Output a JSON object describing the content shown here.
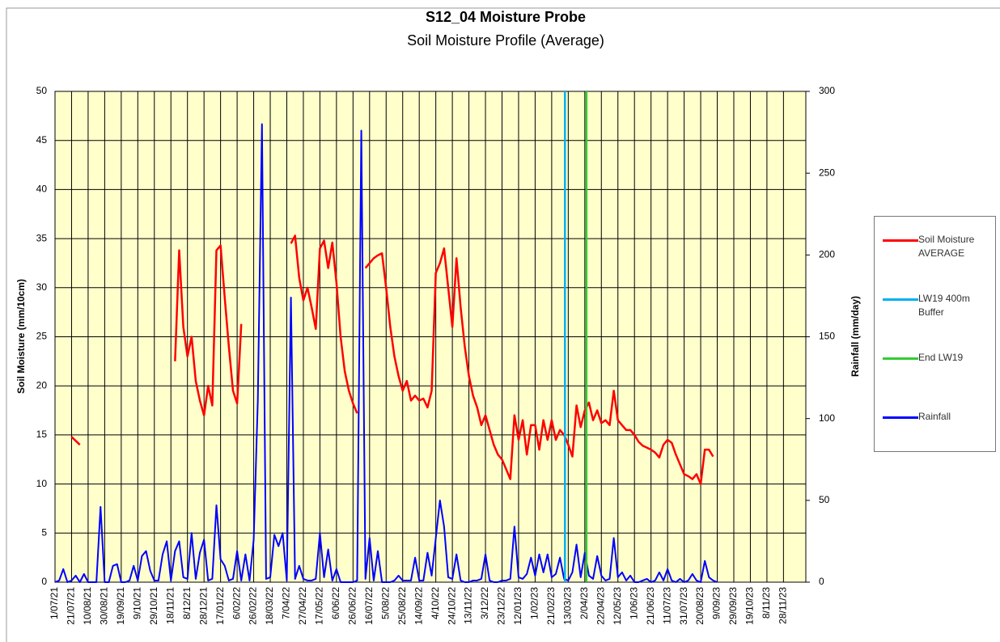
{
  "chart_data": {
    "type": "line",
    "title": "S12_04 Moisture Probe",
    "subtitle": "Soil Moisture Profile (Average)",
    "y_label": "Soil Moisture (mm/10cm)",
    "y2_label": "Rainfall (mm/day)",
    "grid": true,
    "legend": "right",
    "xlim": [
      "2021-07-01",
      "2023-12-25"
    ],
    "ylim": [
      0,
      50
    ],
    "yticks": [
      0,
      5,
      10,
      15,
      20,
      25,
      30,
      35,
      40,
      45,
      50
    ],
    "y2lim": [
      0,
      300
    ],
    "y2ticks": [
      0,
      50,
      100,
      150,
      200,
      250,
      300
    ],
    "xticks": [
      {
        "value": "2021-07-01",
        "label": "1/07/21"
      },
      {
        "value": "2021-07-21",
        "label": "21/07/21"
      },
      {
        "value": "2021-08-10",
        "label": "10/08/21"
      },
      {
        "value": "2021-08-30",
        "label": "30/08/21"
      },
      {
        "value": "2021-09-19",
        "label": "19/09/21"
      },
      {
        "value": "2021-10-09",
        "label": "9/10/21"
      },
      {
        "value": "2021-10-29",
        "label": "29/10/21"
      },
      {
        "value": "2021-11-18",
        "label": "18/11/21"
      },
      {
        "value": "2021-12-08",
        "label": "8/12/21"
      },
      {
        "value": "2021-12-28",
        "label": "28/12/21"
      },
      {
        "value": "2022-01-17",
        "label": "17/01/22"
      },
      {
        "value": "2022-02-06",
        "label": "6/02/22"
      },
      {
        "value": "2022-02-26",
        "label": "26/02/22"
      },
      {
        "value": "2022-03-18",
        "label": "18/03/22"
      },
      {
        "value": "2022-04-07",
        "label": "7/04/22"
      },
      {
        "value": "2022-04-27",
        "label": "27/04/22"
      },
      {
        "value": "2022-05-17",
        "label": "17/05/22"
      },
      {
        "value": "2022-06-06",
        "label": "6/06/22"
      },
      {
        "value": "2022-06-26",
        "label": "26/06/22"
      },
      {
        "value": "2022-07-16",
        "label": "16/07/22"
      },
      {
        "value": "2022-08-05",
        "label": "5/08/22"
      },
      {
        "value": "2022-08-25",
        "label": "25/08/22"
      },
      {
        "value": "2022-09-14",
        "label": "14/09/22"
      },
      {
        "value": "2022-10-04",
        "label": "4/10/22"
      },
      {
        "value": "2022-10-24",
        "label": "24/10/22"
      },
      {
        "value": "2022-11-13",
        "label": "13/11/22"
      },
      {
        "value": "2022-12-03",
        "label": "3/12/22"
      },
      {
        "value": "2022-12-23",
        "label": "23/12/22"
      },
      {
        "value": "2023-01-12",
        "label": "12/01/23"
      },
      {
        "value": "2023-02-01",
        "label": "1/02/23"
      },
      {
        "value": "2023-02-21",
        "label": "21/02/23"
      },
      {
        "value": "2023-03-13",
        "label": "13/03/23"
      },
      {
        "value": "2023-04-02",
        "label": "2/04/23"
      },
      {
        "value": "2023-04-22",
        "label": "22/04/23"
      },
      {
        "value": "2023-05-12",
        "label": "12/05/23"
      },
      {
        "value": "2023-06-01",
        "label": "1/06/23"
      },
      {
        "value": "2023-06-21",
        "label": "21/06/23"
      },
      {
        "value": "2023-07-11",
        "label": "11/07/23"
      },
      {
        "value": "2023-07-31",
        "label": "31/07/23"
      },
      {
        "value": "2023-08-20",
        "label": "20/08/23"
      },
      {
        "value": "2023-09-09",
        "label": "9/09/23"
      },
      {
        "value": "2023-09-29",
        "label": "29/09/23"
      },
      {
        "value": "2023-10-19",
        "label": "19/10/23"
      },
      {
        "value": "2023-11-08",
        "label": "8/11/23"
      },
      {
        "value": "2023-11-28",
        "label": "28/11/23"
      }
    ],
    "x": [
      "2021-07-01",
      "2021-07-06",
      "2021-07-11",
      "2021-07-16",
      "2021-07-21",
      "2021-07-26",
      "2021-07-31",
      "2021-08-05",
      "2021-08-10",
      "2021-08-15",
      "2021-08-20",
      "2021-08-25",
      "2021-08-30",
      "2021-09-04",
      "2021-09-09",
      "2021-09-14",
      "2021-09-19",
      "2021-09-24",
      "2021-09-29",
      "2021-10-04",
      "2021-10-09",
      "2021-10-14",
      "2021-10-19",
      "2021-10-24",
      "2021-10-29",
      "2021-11-03",
      "2021-11-08",
      "2021-11-13",
      "2021-11-18",
      "2021-11-23",
      "2021-11-28",
      "2021-12-03",
      "2021-12-08",
      "2021-12-13",
      "2021-12-18",
      "2021-12-23",
      "2021-12-28",
      "2022-01-02",
      "2022-01-07",
      "2022-01-12",
      "2022-01-17",
      "2022-01-22",
      "2022-01-27",
      "2022-02-01",
      "2022-02-06",
      "2022-02-11",
      "2022-02-16",
      "2022-02-21",
      "2022-02-26",
      "2022-03-03",
      "2022-03-08",
      "2022-03-13",
      "2022-03-18",
      "2022-03-23",
      "2022-03-28",
      "2022-04-02",
      "2022-04-07",
      "2022-04-12",
      "2022-04-17",
      "2022-04-22",
      "2022-04-27",
      "2022-05-02",
      "2022-05-07",
      "2022-05-12",
      "2022-05-17",
      "2022-05-22",
      "2022-05-27",
      "2022-06-01",
      "2022-06-06",
      "2022-06-11",
      "2022-06-16",
      "2022-06-21",
      "2022-06-26",
      "2022-07-01",
      "2022-07-06",
      "2022-07-11",
      "2022-07-16",
      "2022-07-21",
      "2022-07-26",
      "2022-07-31",
      "2022-08-05",
      "2022-08-10",
      "2022-08-15",
      "2022-08-20",
      "2022-08-25",
      "2022-08-30",
      "2022-09-04",
      "2022-09-09",
      "2022-09-14",
      "2022-09-19",
      "2022-09-24",
      "2022-09-29",
      "2022-10-04",
      "2022-10-09",
      "2022-10-14",
      "2022-10-19",
      "2022-10-24",
      "2022-10-29",
      "2022-11-03",
      "2022-11-08",
      "2022-11-13",
      "2022-11-18",
      "2022-11-23",
      "2022-11-28",
      "2022-12-03",
      "2022-12-08",
      "2022-12-13",
      "2022-12-18",
      "2022-12-23",
      "2022-12-28",
      "2023-01-02",
      "2023-01-07",
      "2023-01-12",
      "2023-01-17",
      "2023-01-22",
      "2023-01-27",
      "2023-02-01",
      "2023-02-06",
      "2023-02-11",
      "2023-02-16",
      "2023-02-21",
      "2023-02-26",
      "2023-03-03",
      "2023-03-08",
      "2023-03-13",
      "2023-03-18",
      "2023-03-23",
      "2023-03-28",
      "2023-04-02",
      "2023-04-07",
      "2023-04-12",
      "2023-04-17",
      "2023-04-22",
      "2023-04-27",
      "2023-05-02",
      "2023-05-07",
      "2023-05-12",
      "2023-05-17",
      "2023-05-22",
      "2023-05-27",
      "2023-06-01",
      "2023-06-06",
      "2023-06-11",
      "2023-06-16",
      "2023-06-21",
      "2023-06-26",
      "2023-07-01",
      "2023-07-06",
      "2023-07-11",
      "2023-07-16",
      "2023-07-21",
      "2023-07-26",
      "2023-07-31",
      "2023-08-05",
      "2023-08-10",
      "2023-08-15",
      "2023-08-20",
      "2023-08-25",
      "2023-08-30",
      "2023-09-04",
      "2023-09-09"
    ],
    "series": [
      {
        "name": "Soil Moisture AVERAGE",
        "color": "#ff0000",
        "axis": "y",
        "values": [
          null,
          null,
          null,
          null,
          14.8,
          14.4,
          14.0,
          null,
          null,
          null,
          null,
          null,
          null,
          null,
          null,
          null,
          null,
          null,
          null,
          null,
          null,
          null,
          null,
          null,
          null,
          null,
          null,
          null,
          null,
          22.5,
          33.8,
          26,
          23,
          25,
          20.5,
          18.5,
          17,
          20,
          18,
          33.8,
          34.3,
          29,
          24,
          19.5,
          18.2,
          26.3,
          null,
          null,
          null,
          null,
          null,
          null,
          null,
          null,
          null,
          null,
          null,
          34.5,
          35.3,
          31,
          28.7,
          30,
          28,
          25.8,
          34,
          34.8,
          32,
          34.6,
          30.5,
          25,
          21.5,
          19.5,
          18.2,
          17.2,
          null,
          32,
          32.5,
          33,
          33.3,
          33.5,
          30,
          26,
          23,
          21,
          19.5,
          20.5,
          18.5,
          19,
          18.5,
          18.7,
          17.8,
          19.5,
          31.5,
          32.5,
          34,
          30,
          26,
          33,
          28,
          24,
          21,
          19,
          17.8,
          16,
          17,
          15.5,
          14,
          13,
          12.5,
          11.5,
          10.5,
          17,
          14.5,
          16.5,
          13,
          16,
          16,
          13.5,
          16.5,
          14.5,
          16.5,
          14.5,
          15.5,
          15,
          14,
          12.8,
          18,
          15.8,
          17.5,
          18.3,
          16.5,
          17.5,
          16.2,
          16.5,
          16,
          19.5,
          16.5,
          16,
          15.5,
          15.5,
          15,
          14.3,
          13.9,
          13.7,
          13.5,
          13.2,
          12.7,
          14,
          14.5,
          14.2,
          13,
          12,
          11,
          10.8,
          10.5,
          11,
          10,
          13.5,
          13.5,
          12.8,
          null
        ]
      },
      {
        "name": "Rainfall",
        "color": "#0000ff",
        "axis": "y2",
        "values": [
          0,
          1,
          8,
          0,
          1,
          4,
          0,
          5,
          0,
          0,
          0,
          46,
          0,
          0,
          10,
          11,
          0,
          0,
          1,
          10,
          1,
          16,
          19,
          7,
          1,
          1,
          17,
          25,
          1,
          19,
          25,
          3,
          2,
          30,
          2,
          18,
          26,
          1,
          2,
          47,
          14,
          10,
          1,
          2,
          19,
          1,
          17,
          1,
          26,
          111,
          280,
          2,
          3,
          29,
          22,
          30,
          1,
          174,
          2,
          10,
          2,
          1,
          1,
          2,
          30,
          3,
          20,
          1,
          8,
          0,
          0,
          0,
          0,
          1,
          276,
          2,
          27,
          1,
          19,
          0,
          0,
          0,
          1,
          4,
          1,
          1,
          1,
          15,
          1,
          1,
          18,
          4,
          27,
          50,
          34,
          3,
          2,
          17,
          1,
          0,
          0,
          1,
          1,
          2,
          17,
          1,
          0,
          0,
          1,
          1,
          2,
          34,
          3,
          2,
          5,
          15,
          4,
          17,
          6,
          17,
          3,
          5,
          15,
          2,
          1,
          6,
          23,
          3,
          18,
          4,
          2,
          16,
          4,
          1,
          2,
          27,
          3,
          6,
          1,
          4,
          0,
          0,
          1,
          2,
          0,
          1,
          6,
          1,
          8,
          1,
          0,
          2,
          0,
          1,
          5,
          1,
          0,
          13,
          3,
          1,
          0
        ]
      }
    ],
    "vlines": [
      {
        "name": "LW19 400m Buffer",
        "color": "#00b0f0",
        "x": "2023-03-09"
      },
      {
        "name": "End LW19",
        "color": "#33cc33",
        "x": "2023-04-04"
      }
    ]
  }
}
